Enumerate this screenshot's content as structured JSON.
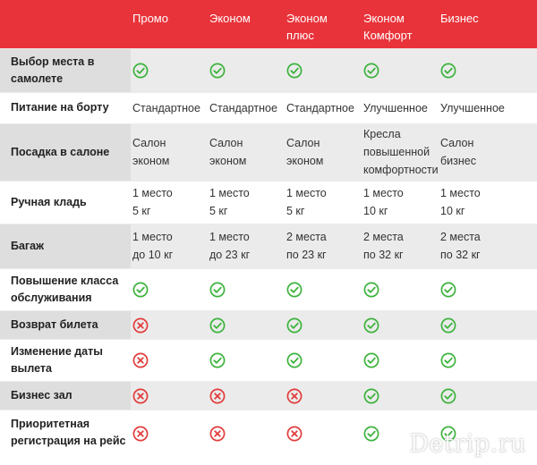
{
  "fares": [
    "Промо",
    "Эконом",
    "Эконом плюс",
    "Эконом Комфорт",
    "Бизнес"
  ],
  "rows": [
    {
      "label": "Выбор места в самолете",
      "cells": [
        {
          "type": "check"
        },
        {
          "type": "check"
        },
        {
          "type": "check"
        },
        {
          "type": "check"
        },
        {
          "type": "check"
        }
      ]
    },
    {
      "label": "Питание на борту",
      "cells": [
        {
          "type": "text",
          "text": "Стандартное"
        },
        {
          "type": "text",
          "text": "Стандартное"
        },
        {
          "type": "text",
          "text": "Стандартное"
        },
        {
          "type": "text",
          "text": "Улучшенное"
        },
        {
          "type": "text",
          "text": "Улучшенное"
        }
      ]
    },
    {
      "label": "Посадка в салоне",
      "cells": [
        {
          "type": "text",
          "text": "Салон\nэконом"
        },
        {
          "type": "text",
          "text": "Салон\nэконом"
        },
        {
          "type": "text",
          "text": "Салон\nэконом"
        },
        {
          "type": "text",
          "text": "Кресла\nповышенной\nкомфортности"
        },
        {
          "type": "text",
          "text": "Салон\nбизнес"
        }
      ]
    },
    {
      "label": "Ручная кладь",
      "cells": [
        {
          "type": "text",
          "text": "1 место\n5 кг"
        },
        {
          "type": "text",
          "text": "1 место\n5 кг"
        },
        {
          "type": "text",
          "text": "1 место\n5 кг"
        },
        {
          "type": "text",
          "text": "1 место\n10 кг"
        },
        {
          "type": "text",
          "text": "1 место\n10 кг"
        }
      ]
    },
    {
      "label": "Багаж",
      "cells": [
        {
          "type": "text",
          "text": "1 место\nдо 10 кг"
        },
        {
          "type": "text",
          "text": "1 место\nдо 23 кг"
        },
        {
          "type": "text",
          "text": "2 места\nпо 23 кг"
        },
        {
          "type": "text",
          "text": "2 места\nпо 32 кг"
        },
        {
          "type": "text",
          "text": "2 места\nпо 32 кг"
        }
      ]
    },
    {
      "label": "Повышение класса обслуживания",
      "cells": [
        {
          "type": "check"
        },
        {
          "type": "check"
        },
        {
          "type": "check"
        },
        {
          "type": "check"
        },
        {
          "type": "check"
        }
      ]
    },
    {
      "label": "Возврат билета",
      "cells": [
        {
          "type": "cross"
        },
        {
          "type": "check"
        },
        {
          "type": "check"
        },
        {
          "type": "check"
        },
        {
          "type": "check"
        }
      ]
    },
    {
      "label": "Изменение даты вылета",
      "cells": [
        {
          "type": "cross"
        },
        {
          "type": "check"
        },
        {
          "type": "check"
        },
        {
          "type": "check"
        },
        {
          "type": "check"
        }
      ]
    },
    {
      "label": "Бизнес зал",
      "cells": [
        {
          "type": "cross"
        },
        {
          "type": "cross"
        },
        {
          "type": "cross"
        },
        {
          "type": "check"
        },
        {
          "type": "check"
        }
      ]
    },
    {
      "label": "Приоритетная регистрация на рейс",
      "cells": [
        {
          "type": "cross"
        },
        {
          "type": "cross"
        },
        {
          "type": "cross"
        },
        {
          "type": "check"
        },
        {
          "type": "check"
        }
      ]
    }
  ],
  "icons": {
    "check": "check-circle-icon",
    "cross": "cross-circle-icon"
  },
  "colors": {
    "header": "#e9333a",
    "check": "#3cb33c",
    "cross": "#e23b3b"
  },
  "watermark": "Detrip.ru"
}
